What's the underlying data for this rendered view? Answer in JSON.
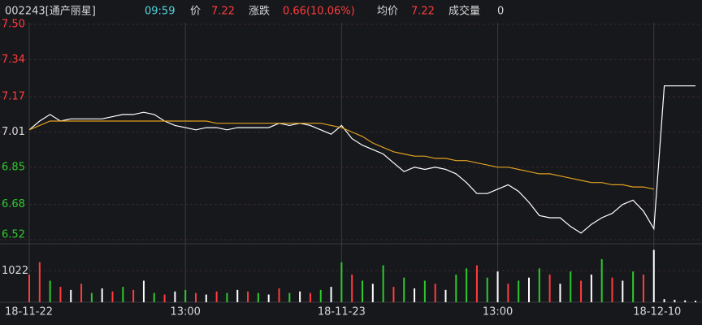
{
  "header": {
    "code": "002243[通产丽星]",
    "time": "09:59",
    "price_label": "价",
    "price": "7.22",
    "change_label": "涨跌",
    "change": "0.66(10.06%)",
    "avg_label": "均价",
    "avg": "7.22",
    "volume_label": "成交量",
    "volume": "0"
  },
  "chart_data": {
    "type": "line",
    "xticks": [
      {
        "value": 0,
        "label": "18-11-22"
      },
      {
        "value": 15,
        "label": "13:00"
      },
      {
        "value": 30,
        "label": "18-11-23"
      },
      {
        "value": 45,
        "label": "13:00"
      },
      {
        "value": 60,
        "label": "18-12-10"
      }
    ],
    "ylim": [
      6.52,
      7.5
    ],
    "yticks": [
      {
        "value": 7.5,
        "label": "7.50"
      },
      7.34,
      7.17,
      7.01,
      6.85,
      6.68,
      6.52
    ],
    "ytick_colors": [
      "#ff3c3c",
      "#ff3c3c",
      "#ff3c3c",
      "#d8d8d8",
      "#2ec92e",
      "#2ec92e",
      "#2ec92e"
    ],
    "series": [
      {
        "name": "价",
        "color": "#ffffff",
        "values": [
          7.02,
          7.06,
          7.09,
          7.06,
          7.07,
          7.07,
          7.07,
          7.07,
          7.08,
          7.09,
          7.09,
          7.1,
          7.09,
          7.06,
          7.04,
          7.03,
          7.02,
          7.03,
          7.03,
          7.02,
          7.03,
          7.03,
          7.03,
          7.03,
          7.05,
          7.04,
          7.05,
          7.04,
          7.02,
          7.0,
          7.04,
          6.98,
          6.95,
          6.93,
          6.91,
          6.87,
          6.83,
          6.85,
          6.84,
          6.85,
          6.84,
          6.82,
          6.78,
          6.73,
          6.73,
          6.75,
          6.77,
          6.74,
          6.69,
          6.63,
          6.62,
          6.62,
          6.58,
          6.55,
          6.59,
          6.62,
          6.64,
          6.68,
          6.7,
          6.65,
          6.57,
          7.22,
          7.22,
          7.22,
          7.22
        ]
      },
      {
        "name": "均价",
        "color": "#e0a020",
        "values": [
          7.02,
          7.04,
          7.06,
          7.06,
          7.06,
          7.06,
          7.06,
          7.06,
          7.06,
          7.06,
          7.06,
          7.06,
          7.06,
          7.06,
          7.06,
          7.06,
          7.06,
          7.06,
          7.05,
          7.05,
          7.05,
          7.05,
          7.05,
          7.05,
          7.05,
          7.05,
          7.05,
          7.05,
          7.05,
          7.04,
          7.03,
          7.01,
          6.99,
          6.96,
          6.94,
          6.92,
          6.91,
          6.9,
          6.9,
          6.89,
          6.89,
          6.88,
          6.88,
          6.87,
          6.86,
          6.85,
          6.85,
          6.84,
          6.83,
          6.82,
          6.82,
          6.81,
          6.8,
          6.79,
          6.78,
          6.78,
          6.77,
          6.77,
          6.76,
          6.76,
          6.75,
          null,
          null,
          null,
          null
        ]
      }
    ],
    "volume": {
      "ylim": [
        0,
        1900
      ],
      "yticks": [
        1022
      ],
      "values": [
        900,
        1300,
        700,
        500,
        400,
        600,
        300,
        450,
        350,
        500,
        400,
        700,
        300,
        250,
        350,
        400,
        300,
        250,
        350,
        300,
        400,
        350,
        300,
        250,
        450,
        300,
        350,
        300,
        400,
        500,
        1300,
        900,
        700,
        600,
        1200,
        500,
        800,
        450,
        700,
        600,
        400,
        900,
        1100,
        1200,
        800,
        1000,
        600,
        700,
        800,
        1100,
        900,
        600,
        1000,
        700,
        900,
        1400,
        800,
        700,
        1000,
        900,
        1700,
        100,
        80,
        60,
        50
      ],
      "colors": [
        "#ff3c3c",
        "#ff3c3c",
        "#2ec92e",
        "#ff3c3c",
        "#ffffff",
        "#ff3c3c",
        "#2ec92e",
        "#ffffff",
        "#ff3c3c",
        "#2ec92e",
        "#ff3c3c",
        "#ffffff",
        "#2ec92e",
        "#ff3c3c",
        "#ffffff",
        "#2ec92e",
        "#ff3c3c",
        "#ffffff",
        "#ff3c3c",
        "#2ec92e",
        "#ffffff",
        "#ff3c3c",
        "#2ec92e",
        "#ffffff",
        "#ff3c3c",
        "#2ec92e",
        "#ffffff",
        "#ff3c3c",
        "#2ec92e",
        "#ffffff",
        "#2ec92e",
        "#ff3c3c",
        "#2ec92e",
        "#ffffff",
        "#2ec92e",
        "#ff3c3c",
        "#2ec92e",
        "#ffffff",
        "#2ec92e",
        "#ff3c3c",
        "#ffffff",
        "#2ec92e",
        "#2ec92e",
        "#ff3c3c",
        "#2ec92e",
        "#ffffff",
        "#ff3c3c",
        "#2ec92e",
        "#ffffff",
        "#2ec92e",
        "#ff3c3c",
        "#ffffff",
        "#2ec92e",
        "#ff3c3c",
        "#ffffff",
        "#2ec92e",
        "#ff3c3c",
        "#ffffff",
        "#2ec92e",
        "#ff3c3c",
        "#ffffff",
        "#ffffff",
        "#ffffff",
        "#ffffff",
        "#ffffff"
      ]
    }
  }
}
